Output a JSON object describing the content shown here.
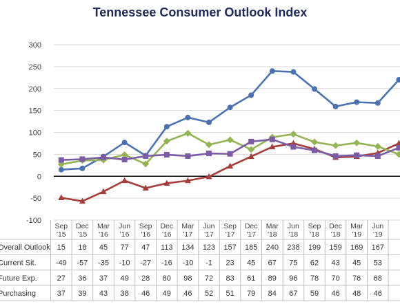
{
  "title": "Tennessee Consumer Outlook Index",
  "chart_data": {
    "type": "line",
    "title": "Tennessee Consumer Outlook Index",
    "categories": [
      [
        "Sep",
        "'15"
      ],
      [
        "Dec",
        "'15"
      ],
      [
        "Mar",
        "'16"
      ],
      [
        "Jun",
        "'16"
      ],
      [
        "Sep",
        "'16"
      ],
      [
        "Dec",
        "'16"
      ],
      [
        "Mar",
        "'17"
      ],
      [
        "Jun",
        "'17"
      ],
      [
        "Sep",
        "'17"
      ],
      [
        "Dec",
        "'17"
      ],
      [
        "Mar",
        "'18"
      ],
      [
        "Jun",
        "'18"
      ],
      [
        "Sep",
        "'18"
      ],
      [
        "Dec",
        "'18"
      ],
      [
        "Mar",
        "'19"
      ],
      [
        "Jun",
        "'19"
      ],
      [
        "",
        ""
      ]
    ],
    "ylim": [
      -100,
      300
    ],
    "yticks": [
      -100,
      -50,
      0,
      50,
      100,
      150,
      200,
      250,
      300
    ],
    "grid": true,
    "legend": "data-table",
    "series": [
      {
        "name": "Overall Outlook",
        "color": "#4a72b0",
        "marker": "circle",
        "values": [
          15,
          18,
          45,
          77,
          47,
          113,
          134,
          123,
          157,
          185,
          240,
          238,
          199,
          159,
          169,
          167,
          220
        ]
      },
      {
        "name": "Current Sit.",
        "color": "#a63d3a",
        "marker": "triangle",
        "values": [
          -49,
          -57,
          -35,
          -10,
          -27,
          -16,
          -10,
          -1,
          23,
          45,
          67,
          75,
          62,
          43,
          45,
          53,
          75
        ]
      },
      {
        "name": "Future Exp.",
        "color": "#94b454",
        "marker": "diamond",
        "values": [
          27,
          36,
          37,
          49,
          28,
          80,
          98,
          72,
          83,
          61,
          89,
          96,
          78,
          70,
          76,
          68,
          50
        ]
      },
      {
        "name": "Purchasing",
        "color": "#7b5ba6",
        "marker": "square",
        "values": [
          37,
          39,
          43,
          38,
          46,
          49,
          46,
          52,
          51,
          79,
          84,
          67,
          59,
          46,
          48,
          46,
          65
        ]
      }
    ]
  }
}
